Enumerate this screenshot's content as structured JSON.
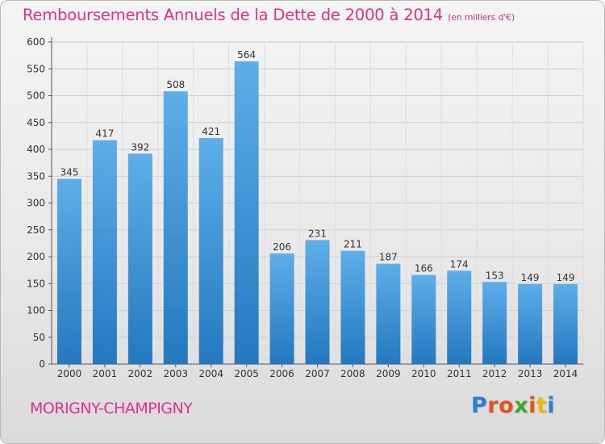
{
  "header": {
    "title": "Remboursements Annuels de la Dette de 2000 à 2014",
    "subtitle": "(en milliers d'€)"
  },
  "footer": {
    "commune": "MORIGNY-CHAMPIGNY",
    "logo_text": "Proxiti"
  },
  "colors": {
    "title": "#e0328a",
    "bar_top": "#5eaee8",
    "bar_bottom": "#2378c0",
    "logo_letters": [
      "#2a7fd4",
      "#e8501e",
      "#e8501e",
      "#39a935",
      "#e8501e",
      "#f2b705",
      "#2a7fd4"
    ]
  },
  "chart_data": {
    "type": "bar",
    "title": "Remboursements Annuels de la Dette de 2000 à 2014",
    "unit": "en milliers d'€",
    "categories": [
      "2000",
      "2001",
      "2002",
      "2003",
      "2004",
      "2005",
      "2006",
      "2007",
      "2008",
      "2009",
      "2010",
      "2011",
      "2012",
      "2013",
      "2014"
    ],
    "values": [
      345,
      417,
      392,
      508,
      421,
      564,
      206,
      231,
      211,
      187,
      166,
      174,
      153,
      149,
      149
    ],
    "ylim": [
      0,
      600
    ],
    "yticks": [
      0,
      50,
      100,
      150,
      200,
      250,
      300,
      350,
      400,
      450,
      500,
      550,
      600
    ],
    "grid": true,
    "xlabel": "",
    "ylabel": ""
  }
}
